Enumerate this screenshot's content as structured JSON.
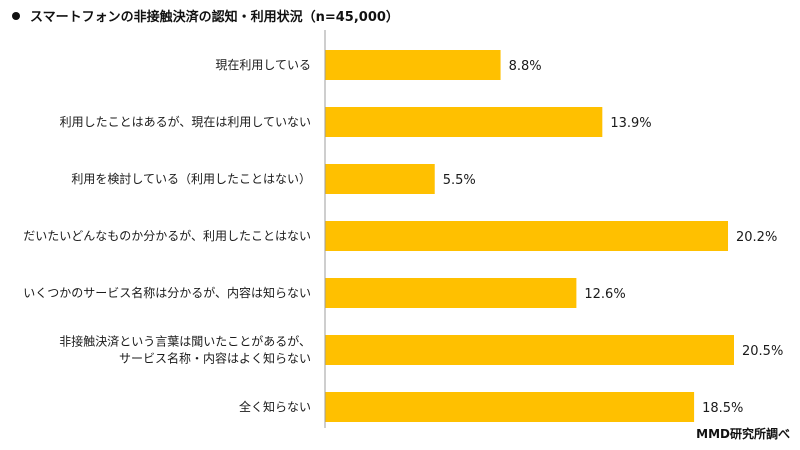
{
  "title": "スマートフォンの非接触決済の認知・利用状況（n=45,000）",
  "source": "MMD研究所調べ",
  "colors": {
    "bar": "#FFC000",
    "axis": "#9E9E9E",
    "text": "#1A1A1A"
  },
  "chart_data": {
    "type": "bar",
    "orientation": "horizontal",
    "unit": "%",
    "categories": [
      [
        "現在利用している"
      ],
      [
        "利用したことはあるが、現在は利用していない"
      ],
      [
        "利用を検討している（利用したことはない）"
      ],
      [
        "だいたいどんなものか分かるが、利用したことはない"
      ],
      [
        "いくつかのサービス名称は分かるが、内容は知らない"
      ],
      [
        "非接触決済という言葉は聞いたことがあるが、",
        "サービス名称・内容はよく知らない"
      ],
      [
        "全く知らない"
      ]
    ],
    "values": [
      8.8,
      13.9,
      5.5,
      20.2,
      12.6,
      20.5,
      18.5
    ],
    "data_labels": [
      "8.8%",
      "13.9%",
      "5.5%",
      "20.2%",
      "12.6%",
      "20.5%",
      "18.5%"
    ],
    "xlim": [
      0,
      20.5
    ],
    "grid": false,
    "legend": "none"
  }
}
